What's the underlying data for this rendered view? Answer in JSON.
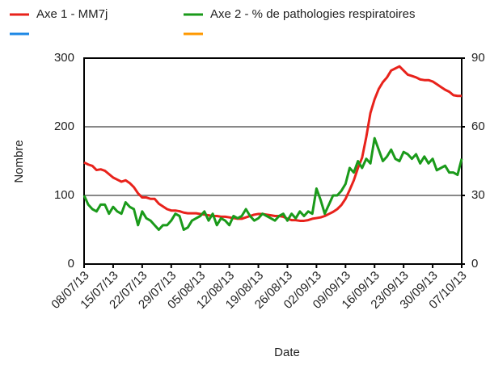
{
  "chart_data": {
    "type": "line",
    "xlabel": "Date",
    "ylabel": "Nombre",
    "categories": [
      "08/07/13",
      null,
      null,
      null,
      null,
      null,
      null,
      "15/07/13",
      null,
      null,
      null,
      null,
      null,
      null,
      "22/07/13",
      null,
      null,
      null,
      null,
      null,
      null,
      "29/07/13",
      null,
      null,
      null,
      null,
      null,
      null,
      "05/08/13",
      null,
      null,
      null,
      null,
      null,
      null,
      "12/08/13",
      null,
      null,
      null,
      null,
      null,
      null,
      "19/08/13",
      null,
      null,
      null,
      null,
      null,
      null,
      "26/08/13",
      null,
      null,
      null,
      null,
      null,
      null,
      "02/09/13",
      null,
      null,
      null,
      null,
      null,
      null,
      "09/09/13",
      null,
      null,
      null,
      null,
      null,
      null,
      "16/09/13",
      null,
      null,
      null,
      null,
      null,
      null,
      "23/09/13",
      null,
      null,
      null,
      null,
      null,
      null,
      "30/09/13",
      null,
      null,
      null,
      null,
      null,
      null,
      "07/10/13"
    ],
    "series": [
      {
        "name": "Axe 1 - MM7j",
        "color": "#e8221b",
        "values": [
          148,
          145,
          143,
          137,
          138,
          136,
          131,
          126,
          123,
          120,
          122,
          118,
          112,
          103,
          97,
          97,
          95,
          95,
          88,
          84,
          80,
          78,
          78,
          77,
          75,
          74,
          74,
          74,
          73,
          72,
          71,
          70,
          70,
          69,
          69,
          68,
          67,
          66,
          66,
          68,
          70,
          72,
          73,
          73,
          72,
          71,
          70,
          70,
          69,
          66,
          64,
          64,
          63,
          63,
          64,
          66,
          67,
          68,
          70,
          73,
          76,
          80,
          86,
          95,
          108,
          122,
          140,
          155,
          185,
          220,
          240,
          255,
          265,
          272,
          282,
          285,
          288,
          282,
          276,
          274,
          272,
          269,
          268,
          268,
          266,
          262,
          258,
          254,
          251,
          246,
          245,
          245
        ]
      },
      {
        "name": "Axe 2 - % de pathologies respiratoires",
        "color": "#1a9a1a",
        "axis": "y2",
        "values": [
          30,
          26,
          24,
          23,
          26,
          26,
          22,
          25,
          23,
          22,
          27,
          25,
          24,
          17,
          23,
          20,
          19,
          17,
          15,
          17,
          17,
          19,
          22,
          21,
          15,
          16,
          19,
          20,
          21,
          23,
          19,
          22,
          17,
          20,
          19,
          17,
          21,
          20,
          21,
          24,
          21,
          19,
          20,
          22,
          21,
          20,
          19,
          21,
          22,
          19,
          22,
          20,
          23,
          21,
          23,
          22,
          33,
          28,
          22,
          26,
          30,
          30,
          32,
          35,
          42,
          40,
          45,
          42,
          46,
          44,
          55,
          50,
          45,
          47,
          50,
          46,
          45,
          49,
          48,
          46,
          48,
          44,
          47,
          44,
          46,
          41,
          42,
          43,
          40,
          40,
          39,
          46
        ]
      }
    ],
    "ylim": [
      0,
      300
    ],
    "yticks": [
      0,
      100,
      200,
      300
    ],
    "y2lim": [
      0,
      90
    ],
    "y2ticks": [
      0,
      30,
      60,
      90
    ],
    "grid": true
  }
}
